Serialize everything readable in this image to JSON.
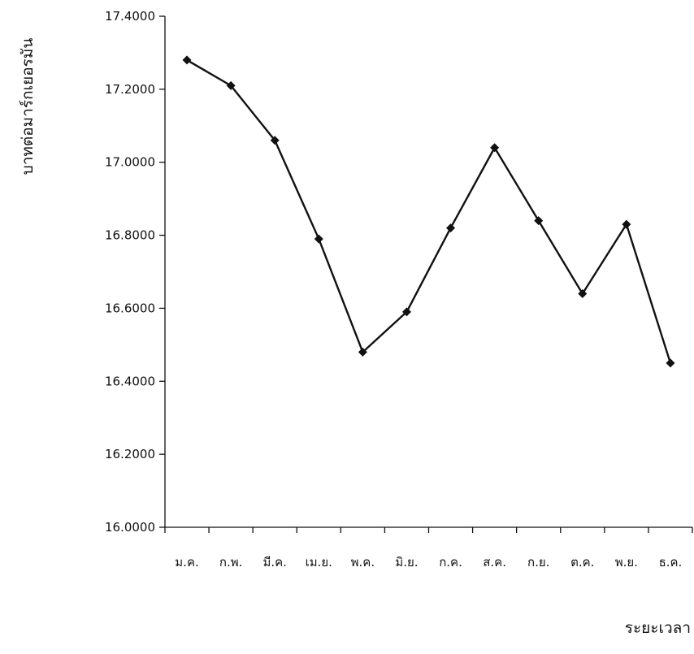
{
  "chart_data": {
    "type": "line",
    "title": "",
    "xlabel": "ระยะเวลา",
    "ylabel": "บาทต่อมาร์กเยอรมัน",
    "categories": [
      "ม.ค.",
      "ก.พ.",
      "มี.ค.",
      "เม.ย.",
      "พ.ค.",
      "มิ.ย.",
      "ก.ค.",
      "ส.ค.",
      "ก.ย.",
      "ต.ค.",
      "พ.ย.",
      "ธ.ค."
    ],
    "series": [
      {
        "values": [
          17.28,
          17.21,
          17.06,
          16.79,
          16.48,
          16.59,
          16.82,
          17.04,
          16.84,
          16.64,
          16.83,
          16.45
        ]
      }
    ],
    "ylim": [
      16.0,
      17.4
    ],
    "yticks": [
      "16.0000",
      "16.2000",
      "16.4000",
      "16.6000",
      "16.8000",
      "17.0000",
      "17.2000",
      "17.4000"
    ],
    "grid": false,
    "legend": "none",
    "colors": {
      "line": "#111111",
      "marker": "#111111",
      "axis": "#111111"
    }
  }
}
